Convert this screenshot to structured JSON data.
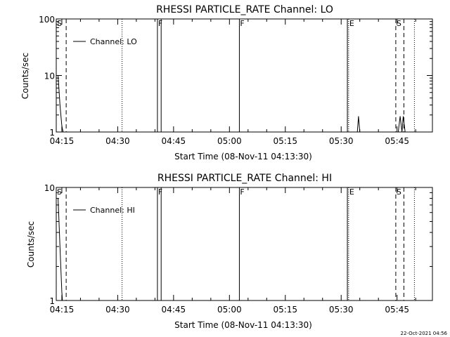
{
  "footer": {
    "timestamp": "22-Oct-2021 04:56"
  },
  "chart_data": [
    {
      "type": "line",
      "title": "RHESSI PARTICLE_RATE Channel: LO",
      "xlabel": "Start Time (08-Nov-11 04:13:30)",
      "ylabel": "Counts/sec",
      "y_scale": "log",
      "ylim": [
        1,
        100
      ],
      "xlim": [
        "04:13:30",
        "05:54:30"
      ],
      "x_ticks": [
        "04:15",
        "04:30",
        "04:45",
        "05:00",
        "05:15",
        "05:30",
        "05:45"
      ],
      "y_ticks": [
        "1",
        "10",
        "100"
      ],
      "grid": false,
      "legend": {
        "placement": "top-left",
        "entries": [
          "Channel: LO"
        ]
      },
      "series": [
        {
          "name": "Channel: LO",
          "points": [
            [
              "04:14:00",
              10
            ],
            [
              "04:14:30",
              3
            ],
            [
              "04:15:00",
              1.3
            ],
            [
              "04:15:20",
              1
            ],
            [
              "05:34:20",
              1
            ],
            [
              "05:34:40",
              1.9
            ],
            [
              "05:35:00",
              1
            ],
            [
              "05:45:20",
              1
            ],
            [
              "05:45:50",
              1.9
            ],
            [
              "05:46:20",
              1
            ],
            [
              "05:46:40",
              1.9
            ],
            [
              "05:47:10",
              1
            ]
          ]
        }
      ],
      "markers": [
        {
          "label": "S",
          "time": "04:13:30",
          "style": "dashed"
        },
        {
          "label": "",
          "time": "04:16:10",
          "style": "dashed"
        },
        {
          "label": "",
          "time": "04:31:10",
          "style": "dotted"
        },
        {
          "label": "F",
          "time": "04:40:40",
          "style": "solid"
        },
        {
          "label": "",
          "time": "04:41:40",
          "style": "solid"
        },
        {
          "label": "F",
          "time": "05:02:40",
          "style": "solid"
        },
        {
          "label": "",
          "time": "05:31:40",
          "style": "solid"
        },
        {
          "label": "E",
          "time": "05:32:00",
          "style": "dotted"
        },
        {
          "label": "S",
          "time": "05:44:40",
          "style": "dashed"
        },
        {
          "label": "",
          "time": "05:46:50",
          "style": "dashed"
        },
        {
          "label": "",
          "time": "05:49:40",
          "style": "dotted"
        }
      ]
    },
    {
      "type": "line",
      "title": "RHESSI PARTICLE_RATE Channel: HI",
      "xlabel": "Start Time (08-Nov-11 04:13:30)",
      "ylabel": "Counts/sec",
      "y_scale": "log",
      "ylim": [
        1,
        10
      ],
      "xlim": [
        "04:13:30",
        "05:54:30"
      ],
      "x_ticks": [
        "04:15",
        "04:30",
        "04:45",
        "05:00",
        "05:15",
        "05:30",
        "05:45"
      ],
      "y_ticks": [
        "1",
        "10"
      ],
      "grid": false,
      "legend": {
        "placement": "top-left",
        "entries": [
          "Channel: HI"
        ]
      },
      "series": [
        {
          "name": "Channel: HI",
          "points": [
            [
              "04:14:00",
              8
            ],
            [
              "04:14:30",
              3
            ],
            [
              "04:15:00",
              1.2
            ],
            [
              "04:15:10",
              1
            ]
          ]
        }
      ],
      "markers": [
        {
          "label": "S",
          "time": "04:13:30",
          "style": "dashed"
        },
        {
          "label": "",
          "time": "04:16:10",
          "style": "dashed"
        },
        {
          "label": "",
          "time": "04:31:10",
          "style": "dotted"
        },
        {
          "label": "F",
          "time": "04:40:40",
          "style": "solid"
        },
        {
          "label": "",
          "time": "04:41:40",
          "style": "solid"
        },
        {
          "label": "F",
          "time": "05:02:40",
          "style": "solid"
        },
        {
          "label": "",
          "time": "05:31:40",
          "style": "solid"
        },
        {
          "label": "E",
          "time": "05:32:00",
          "style": "dotted"
        },
        {
          "label": "S",
          "time": "05:44:40",
          "style": "dashed"
        },
        {
          "label": "",
          "time": "05:46:50",
          "style": "dashed"
        },
        {
          "label": "",
          "time": "05:49:40",
          "style": "dotted"
        }
      ]
    }
  ]
}
